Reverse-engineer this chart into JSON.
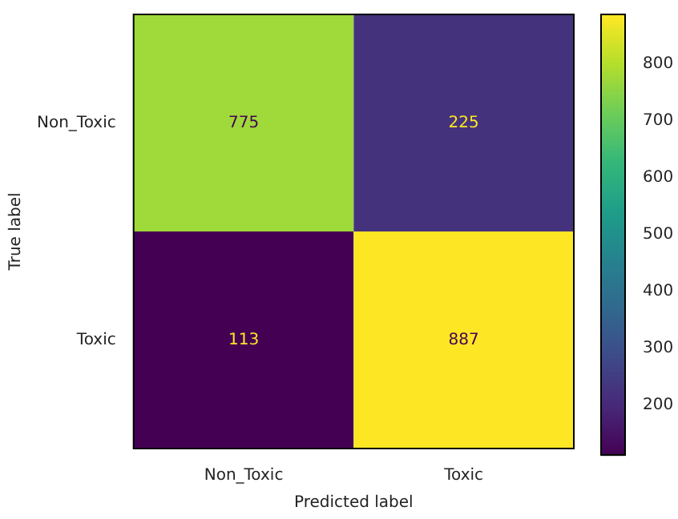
{
  "chart_data": {
    "type": "heatmap",
    "xlabel": "Predicted label",
    "ylabel": "True label",
    "categories": [
      "Non_Toxic",
      "Toxic"
    ],
    "y_categories": [
      "Non_Toxic",
      "Toxic"
    ],
    "cells": [
      [
        775,
        225
      ],
      [
        113,
        887
      ]
    ],
    "data_labels": true,
    "clim": [
      113,
      887
    ],
    "cticks": [
      200,
      300,
      400,
      500,
      600,
      700,
      800
    ]
  }
}
